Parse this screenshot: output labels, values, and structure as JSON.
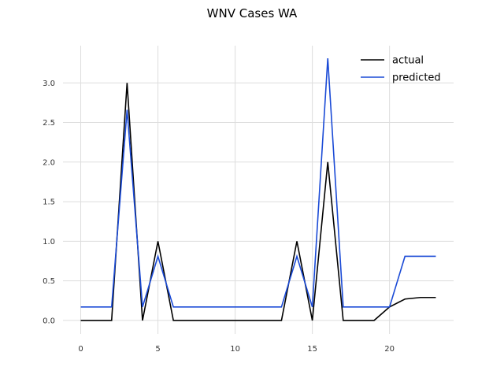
{
  "chart_data": {
    "type": "line",
    "title": "WNV Cases WA",
    "xlabel": "",
    "ylabel": "",
    "xlim": [
      -1.15,
      24.15
    ],
    "ylim": [
      -0.17,
      3.47
    ],
    "xticks": [
      0,
      5,
      10,
      15,
      20
    ],
    "yticks": [
      0.0,
      0.5,
      1.0,
      1.5,
      2.0,
      2.5,
      3.0
    ],
    "grid": true,
    "legend": "top-right",
    "x": [
      0,
      1,
      2,
      3,
      4,
      5,
      6,
      7,
      8,
      9,
      10,
      11,
      12,
      13,
      14,
      15,
      16,
      17,
      18,
      19,
      20,
      21,
      22,
      23
    ],
    "series": [
      {
        "name": "actual",
        "color": "#000000",
        "values": [
          0,
          0,
          0,
          3.0,
          0,
          1.0,
          0,
          0,
          0,
          0,
          0,
          0,
          0,
          0,
          1.0,
          0,
          2.0,
          0,
          0,
          0,
          0.17,
          0.27,
          0.29,
          0.29
        ]
      },
      {
        "name": "predicted",
        "color": "#1a4ad6",
        "values": [
          0.17,
          0.17,
          0.17,
          2.66,
          0.17,
          0.81,
          0.17,
          0.17,
          0.17,
          0.17,
          0.17,
          0.17,
          0.17,
          0.17,
          0.81,
          0.17,
          3.31,
          0.17,
          0.17,
          0.17,
          0.17,
          0.81,
          0.81,
          0.81
        ]
      }
    ]
  }
}
